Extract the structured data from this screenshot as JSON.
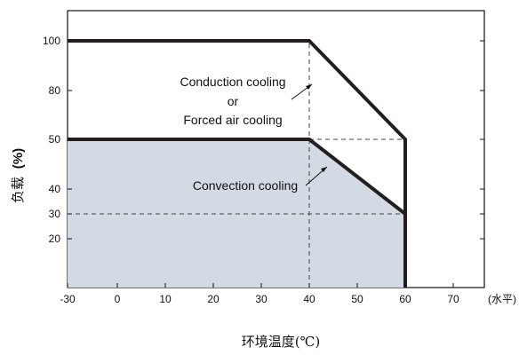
{
  "chart_data": {
    "type": "area",
    "xlabel": "环境温度(℃)",
    "xunit": "(水平)",
    "ylabel_main": "负载",
    "ylabel_unit": "(%)",
    "xlim": [
      -30,
      76
    ],
    "ylim": [
      0,
      111
    ],
    "x_ticks": [
      -30,
      0,
      10,
      20,
      30,
      40,
      50,
      60,
      70
    ],
    "y_ticks": [
      20,
      30,
      40,
      50,
      80,
      100
    ],
    "y_tick_positions": [
      20,
      30,
      40,
      50,
      80,
      100
    ],
    "grid": false,
    "series": [
      {
        "name": "Conduction cooling or Forced air cooling",
        "x": [
          -30,
          40,
          60,
          60
        ],
        "y": [
          100,
          100,
          50,
          0
        ]
      },
      {
        "name": "Convection cooling",
        "x": [
          -30,
          40,
          60,
          60
        ],
        "y": [
          50,
          50,
          30,
          0
        ],
        "fill": "#d3dae4"
      }
    ],
    "reference_lines": [
      {
        "from": [
          40,
          0
        ],
        "to": [
          40,
          100
        ]
      },
      {
        "from": [
          40,
          50
        ],
        "to": [
          60,
          50
        ]
      },
      {
        "from": [
          -30,
          30
        ],
        "to": [
          60,
          30
        ]
      }
    ],
    "annotations": [
      {
        "lines": [
          "Conduction cooling",
          "or",
          "Forced air cooling"
        ],
        "arrow_to": [
          40,
          80
        ]
      },
      {
        "lines": [
          "Convection cooling"
        ],
        "arrow_to": [
          40,
          45
        ]
      }
    ],
    "colors": {
      "curve": "#231f20",
      "fill": "#d3dae4",
      "dashed": "#444444"
    }
  }
}
